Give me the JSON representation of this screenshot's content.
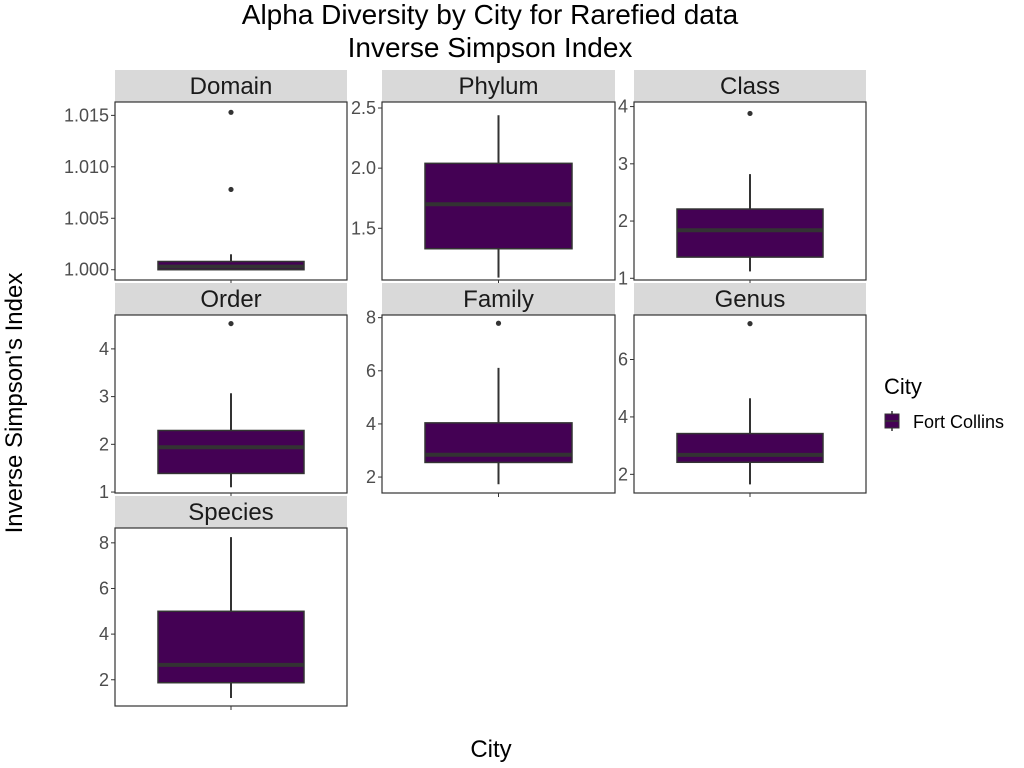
{
  "chart_data": {
    "type": "boxplot",
    "title": "Alpha Diversity by City for Rarefied data",
    "subtitle": "Inverse Simpson Index",
    "xlabel": "City",
    "ylabel": "Inverse Simpson's Index",
    "legend": {
      "title": "City",
      "entries": [
        {
          "name": "Fort Collins",
          "color": "#440154"
        }
      ],
      "placement": "right"
    },
    "fill_color": "#440154",
    "grid": false,
    "panels": [
      {
        "label": "Domain",
        "ylim": [
          0.999,
          1.0163
        ],
        "yticks": [
          1.0,
          1.005,
          1.01,
          1.015
        ],
        "tick_labels": [
          "1.000",
          "1.005",
          "1.010",
          "1.015"
        ],
        "box": {
          "whisker_low": 1.0,
          "q1": 1.0,
          "median": 1.0003,
          "q3": 1.0008,
          "whisker_high": 1.0015
        },
        "outliers": [
          1.0078,
          1.0153
        ]
      },
      {
        "label": "Phylum",
        "ylim": [
          1.07,
          2.55
        ],
        "yticks": [
          1.5,
          2.0,
          2.5
        ],
        "tick_labels": [
          "1.5",
          "2.0",
          "2.5"
        ],
        "box": {
          "whisker_low": 1.09,
          "q1": 1.33,
          "median": 1.7,
          "q3": 2.04,
          "whisker_high": 2.44
        },
        "outliers": []
      },
      {
        "label": "Class",
        "ylim": [
          0.97,
          4.08
        ],
        "yticks": [
          1,
          2,
          3,
          4
        ],
        "tick_labels": [
          "1",
          "2",
          "3",
          "4"
        ],
        "box": {
          "whisker_low": 1.12,
          "q1": 1.37,
          "median": 1.84,
          "q3": 2.21,
          "whisker_high": 2.82
        },
        "outliers": [
          3.88
        ]
      },
      {
        "label": "Order",
        "ylim": [
          0.98,
          4.71
        ],
        "yticks": [
          1,
          2,
          3,
          4
        ],
        "tick_labels": [
          "1",
          "2",
          "3",
          "4"
        ],
        "box": {
          "whisker_low": 1.1,
          "q1": 1.39,
          "median": 1.94,
          "q3": 2.29,
          "whisker_high": 3.07
        },
        "outliers": [
          4.53
        ]
      },
      {
        "label": "Family",
        "ylim": [
          1.4,
          8.1
        ],
        "yticks": [
          2,
          4,
          6,
          8
        ],
        "tick_labels": [
          "2",
          "4",
          "6",
          "8"
        ],
        "box": {
          "whisker_low": 1.73,
          "q1": 2.55,
          "median": 2.84,
          "q3": 4.04,
          "whisker_high": 6.11
        },
        "outliers": [
          7.79
        ]
      },
      {
        "label": "Genus",
        "ylim": [
          1.35,
          7.55
        ],
        "yticks": [
          2,
          4,
          6
        ],
        "tick_labels": [
          "2",
          "4",
          "6"
        ],
        "box": {
          "whisker_low": 1.65,
          "q1": 2.42,
          "median": 2.68,
          "q3": 3.42,
          "whisker_high": 4.65
        },
        "outliers": [
          7.25
        ]
      },
      {
        "label": "Species",
        "ylim": [
          0.85,
          8.65
        ],
        "yticks": [
          2,
          4,
          6,
          8
        ],
        "tick_labels": [
          "2",
          "4",
          "6",
          "8"
        ],
        "box": {
          "whisker_low": 1.2,
          "q1": 1.87,
          "median": 2.65,
          "q3": 5.0,
          "whisker_high": 8.25
        },
        "outliers": []
      }
    ]
  }
}
